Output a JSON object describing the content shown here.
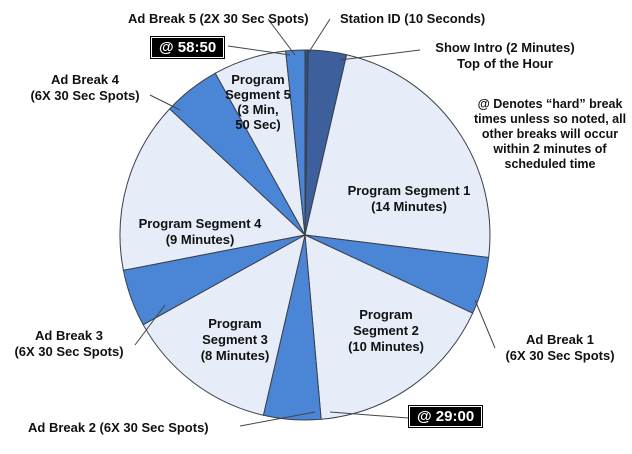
{
  "chart_data": {
    "type": "pie",
    "unit": "seconds",
    "start_angle": "top (12 o'clock), clockwise",
    "slices": [
      {
        "label": "Station ID",
        "detail": "(10 Seconds)",
        "value": 10,
        "color": "#2f4f85"
      },
      {
        "label": "Show Intro",
        "detail": "(2 Minutes)",
        "value": 120,
        "color": "#3d5f9c"
      },
      {
        "label": "Program Segment 1",
        "detail": "(14 Minutes)",
        "value": 840,
        "color": "#e7edf8"
      },
      {
        "label": "Ad Break 1",
        "detail": "(6X 30 Sec Spots)",
        "value": 180,
        "color": "#4b86d6"
      },
      {
        "label": "Program Segment 2",
        "detail": "(10 Minutes)",
        "value": 600,
        "color": "#e7edf8"
      },
      {
        "label": "Ad Break 2",
        "detail": "(6X 30 Sec Spots)",
        "value": 180,
        "color": "#4b86d6"
      },
      {
        "label": "Program Segment 3",
        "detail": "(8 Minutes)",
        "value": 480,
        "color": "#e7edf8"
      },
      {
        "label": "Ad Break 3",
        "detail": "(6X 30 Sec Spots)",
        "value": 180,
        "color": "#4b86d6"
      },
      {
        "label": "Program Segment 4",
        "detail": "(9 Minutes)",
        "value": 540,
        "color": "#e7edf8"
      },
      {
        "label": "Ad Break 4",
        "detail": "(6X 30 Sec Spots)",
        "value": 180,
        "color": "#4b86d6"
      },
      {
        "label": "Program Segment 5",
        "detail": "(3 Min, 50 Sec)",
        "value": 230,
        "color": "#e7edf8"
      },
      {
        "label": "Ad Break 5",
        "detail": "(2X 30 Sec Spots)",
        "value": 60,
        "color": "#4b86d6"
      }
    ],
    "annotations": [
      {
        "text": "@  58:50"
      },
      {
        "text": "@  29:00"
      },
      {
        "text": "Top of the Hour"
      },
      {
        "text": "@ Denotes “hard” break times unless so noted, all other breaks will occur within 2 minutes of scheduled time"
      }
    ]
  },
  "labels": {
    "station_id": "Station ID (10 Seconds)",
    "show_intro": "Show Intro (2 Minutes)",
    "top_of_hour": "Top of the Hour",
    "ad_break_5": "Ad Break 5 (2X 30 Sec Spots)",
    "ad_break_4_a": "Ad Break 4",
    "ad_break_4_b": "(6X 30 Sec Spots)",
    "ad_break_3_a": "Ad Break 3",
    "ad_break_3_b": "(6X 30 Sec Spots)",
    "ad_break_2": "Ad Break 2 (6X 30 Sec Spots)",
    "ad_break_1_a": "Ad Break 1",
    "ad_break_1_b": "(6X 30 Sec Spots)",
    "seg1_a": "Program Segment 1",
    "seg1_b": "(14 Minutes)",
    "seg2_a": "Program",
    "seg2_b": "Segment 2",
    "seg2_c": "(10 Minutes)",
    "seg3_a": "Program",
    "seg3_b": "Segment 3",
    "seg3_c": "(8 Minutes)",
    "seg4_a": "Program Segment 4",
    "seg4_b": "(9 Minutes)",
    "seg5_a": "Program",
    "seg5_b": "Segment 5",
    "seg5_c": "(3 Min,",
    "seg5_d": "50 Sec)",
    "time_5850": "@  58:50",
    "time_2900": "@  29:00",
    "note": "@ Denotes “hard” break times unless so noted, all other breaks will occur within 2 minutes of scheduled time"
  }
}
